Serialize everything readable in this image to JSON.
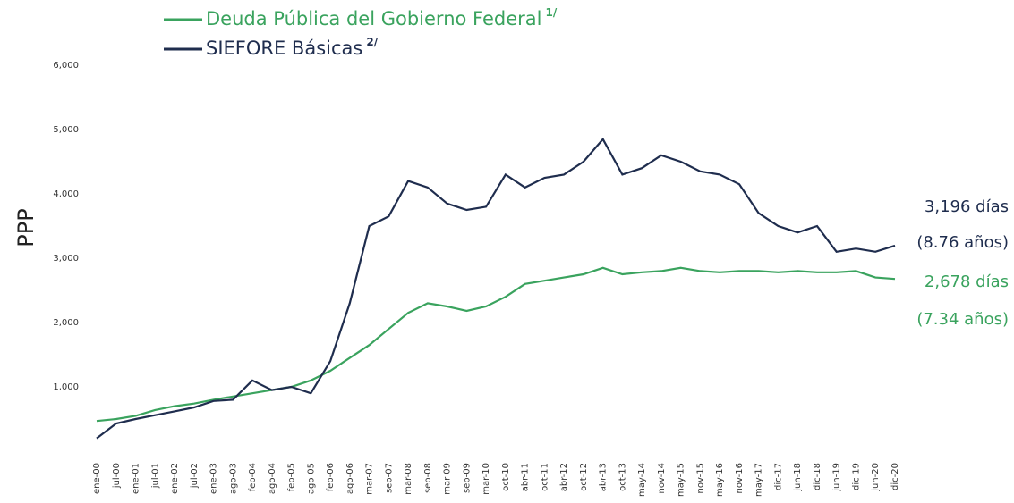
{
  "chart_data": {
    "type": "line",
    "y_label": "PPP",
    "categories": [
      "ene-00",
      "jul-00",
      "ene-01",
      "jul-01",
      "ene-02",
      "jul-02",
      "ene-03",
      "ago-03",
      "feb-04",
      "ago-04",
      "feb-05",
      "ago-05",
      "feb-06",
      "ago-06",
      "mar-07",
      "sep-07",
      "mar-08",
      "sep-08",
      "mar-09",
      "sep-09",
      "mar-10",
      "oct-10",
      "abr-11",
      "oct-11",
      "abr-12",
      "oct-12",
      "abr-13",
      "oct-13",
      "may-14",
      "nov-14",
      "may-15",
      "nov-15",
      "may-16",
      "nov-16",
      "may-17",
      "dic-17",
      "jun-18",
      "dic-18",
      "jun-19",
      "dic-19",
      "jun-20",
      "dic-20"
    ],
    "series": [
      {
        "name": "Deuda Pública del Gobierno Federal",
        "note": "1/",
        "color": "#3aa35e",
        "values": [
          470,
          500,
          550,
          640,
          700,
          740,
          800,
          850,
          900,
          950,
          1000,
          1100,
          1250,
          1450,
          1650,
          1900,
          2150,
          2300,
          2250,
          2180,
          2250,
          2400,
          2600,
          2650,
          2700,
          2750,
          2850,
          2750,
          2780,
          2800,
          2850,
          2800,
          2780,
          2800,
          2800,
          2780,
          2800,
          2780,
          2780,
          2800,
          2700,
          2678
        ]
      },
      {
        "name": "SIEFORE Básicas",
        "note": "2/",
        "color": "#1f2d4e",
        "values": [
          200,
          430,
          500,
          560,
          620,
          680,
          780,
          800,
          1100,
          950,
          1000,
          900,
          1400,
          2300,
          3500,
          3650,
          4200,
          4100,
          3850,
          3750,
          3800,
          4300,
          4100,
          4250,
          4300,
          4500,
          4850,
          4300,
          4400,
          4600,
          4500,
          4350,
          4300,
          4150,
          3700,
          3500,
          3400,
          3500,
          3100,
          3150,
          3100,
          3196
        ]
      }
    ],
    "ylim": [
      0,
      6000
    ],
    "yticks": [
      {
        "value": 1000,
        "label": "1,000"
      },
      {
        "value": 2000,
        "label": "2,000"
      },
      {
        "value": 3000,
        "label": "3,000"
      },
      {
        "value": 4000,
        "label": "4,000"
      },
      {
        "value": 5000,
        "label": "5,000"
      },
      {
        "value": 6000,
        "label": "6,000"
      }
    ],
    "annotations": [
      {
        "text": "3,196 días",
        "series": 1
      },
      {
        "text": "(8.76 años)",
        "series": 1
      },
      {
        "text": "2,678 días",
        "series": 0
      },
      {
        "text": "(7.34 años)",
        "series": 0
      }
    ]
  }
}
